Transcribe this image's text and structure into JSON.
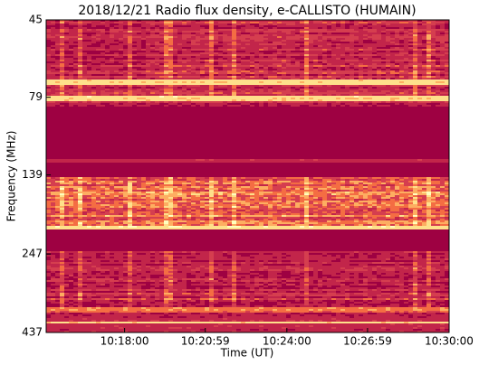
{
  "chart_data": {
    "type": "spectrogram",
    "title": "2018/12/21  Radio flux density, e-CALLISTO (HUMAIN)",
    "xlabel": "Time (UT)",
    "ylabel": "Frequency (MHz)",
    "xlim": [
      36906,
      37800
    ],
    "xticks": [
      {
        "value": 37080,
        "label": "10:18:00"
      },
      {
        "value": 37259,
        "label": "10:20:59"
      },
      {
        "value": 37440,
        "label": "10:24:00"
      },
      {
        "value": 37619,
        "label": "10:26:59"
      },
      {
        "value": 37800,
        "label": "10:30:00"
      }
    ],
    "ylim": [
      45,
      437
    ],
    "yticks": [
      45,
      79,
      139,
      247,
      437
    ],
    "yscale": "log",
    "yinverted": true
  }
}
